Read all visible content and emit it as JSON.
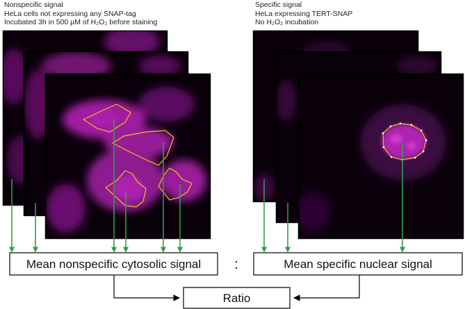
{
  "left_panel": {
    "caption_lines": [
      "Nonspecific signal",
      "HeLa cells not expressing any SNAP-tag",
      "Incubated 3h in 500 µM of H₂O₂ before staining"
    ],
    "result_label": "Mean nonspecific cytosolic signal"
  },
  "right_panel": {
    "caption_lines": [
      "Specific signal",
      "HeLa expressing TERT-SNAP",
      "No H₂O₂ incubation"
    ],
    "result_label": "Mean specific nuclear signal"
  },
  "separator": ":",
  "ratio_label": "Ratio",
  "colors": {
    "image_background": "#0a000a",
    "cell_stain": "#b020b0",
    "roi_outline": "#f0c020",
    "arrow": "#2e9e4a",
    "frame": "#000000"
  }
}
